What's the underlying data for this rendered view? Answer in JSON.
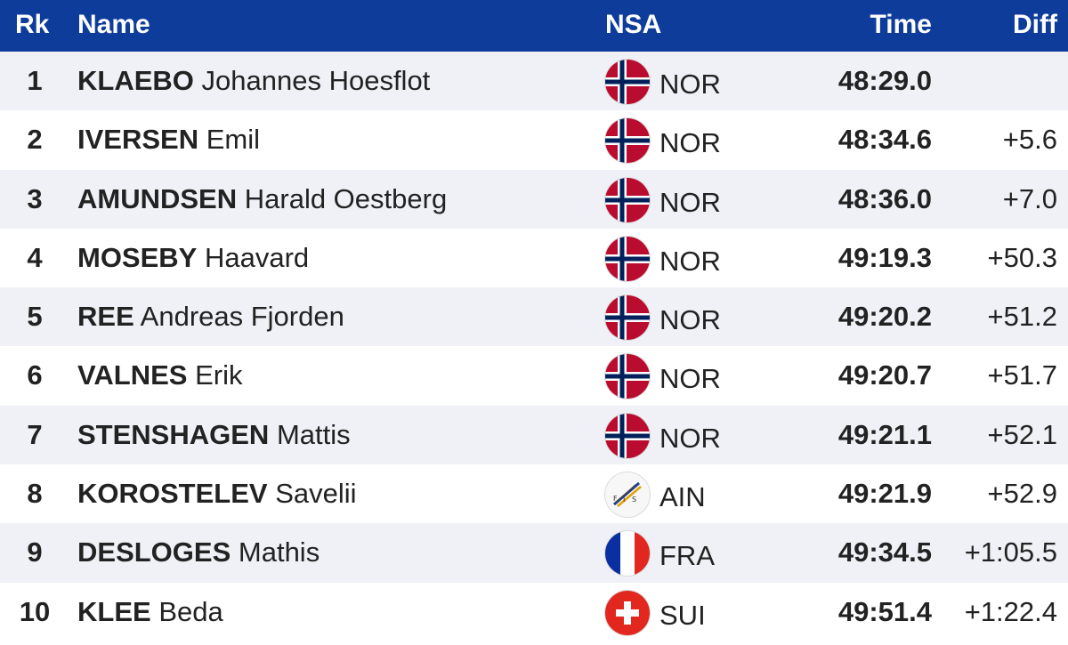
{
  "header": {
    "rk": "Rk",
    "name": "Name",
    "nsa": "NSA",
    "time": "Time",
    "diff": "Diff"
  },
  "colors": {
    "header_bg": "#0d3c9b",
    "row_alt_bg": "#eff1f6"
  },
  "rows": [
    {
      "rank": "1",
      "surname": "KLAEBO",
      "given": "Johannes Hoesflot",
      "nsa": "NOR",
      "flag": "norway-flag-icon",
      "time": "48:29.0",
      "diff": ""
    },
    {
      "rank": "2",
      "surname": "IVERSEN",
      "given": "Emil",
      "nsa": "NOR",
      "flag": "norway-flag-icon",
      "time": "48:34.6",
      "diff": "+5.6"
    },
    {
      "rank": "3",
      "surname": "AMUNDSEN",
      "given": "Harald Oestberg",
      "nsa": "NOR",
      "flag": "norway-flag-icon",
      "time": "48:36.0",
      "diff": "+7.0"
    },
    {
      "rank": "4",
      "surname": "MOSEBY",
      "given": "Haavard",
      "nsa": "NOR",
      "flag": "norway-flag-icon",
      "time": "49:19.3",
      "diff": "+50.3"
    },
    {
      "rank": "5",
      "surname": "REE",
      "given": "Andreas Fjorden",
      "nsa": "NOR",
      "flag": "norway-flag-icon",
      "time": "49:20.2",
      "diff": "+51.2"
    },
    {
      "rank": "6",
      "surname": "VALNES",
      "given": "Erik",
      "nsa": "NOR",
      "flag": "norway-flag-icon",
      "time": "49:20.7",
      "diff": "+51.7"
    },
    {
      "rank": "7",
      "surname": "STENSHAGEN",
      "given": "Mattis",
      "nsa": "NOR",
      "flag": "norway-flag-icon",
      "time": "49:21.1",
      "diff": "+52.1"
    },
    {
      "rank": "8",
      "surname": "KOROSTELEV",
      "given": "Savelii",
      "nsa": "AIN",
      "flag": "fis-logo-icon",
      "time": "49:21.9",
      "diff": "+52.9"
    },
    {
      "rank": "9",
      "surname": "DESLOGES",
      "given": "Mathis",
      "nsa": "FRA",
      "flag": "france-flag-icon",
      "time": "49:34.5",
      "diff": "+1:05.5"
    },
    {
      "rank": "10",
      "surname": "KLEE",
      "given": "Beda",
      "nsa": "SUI",
      "flag": "switzerland-flag-icon",
      "time": "49:51.4",
      "diff": "+1:22.4"
    }
  ]
}
